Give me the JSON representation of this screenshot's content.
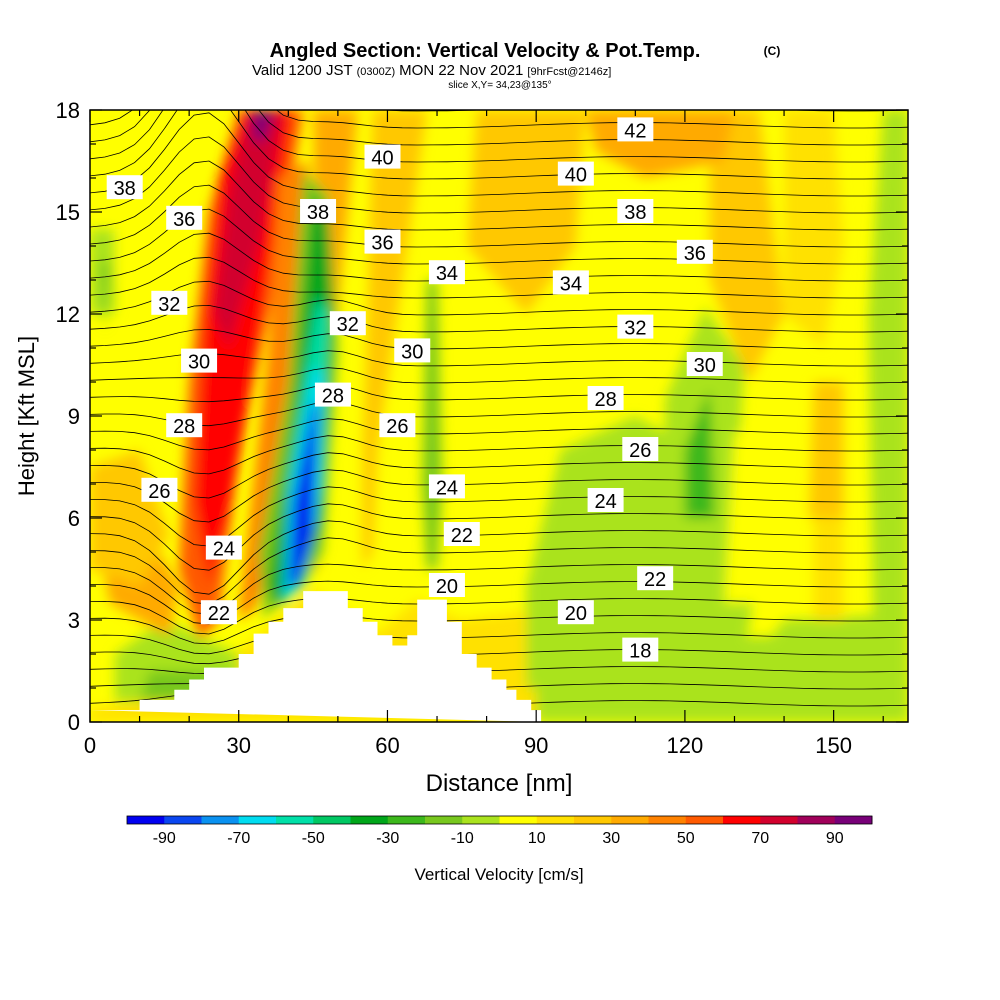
{
  "header": {
    "title": "Angled Section: Vertical Velocity & Pot.Temp.",
    "copyright": "(C)",
    "valid_prefix": "Valid 1200 JST",
    "valid_utc": "(0300Z)",
    "valid_date": "MON 22 Nov 2021",
    "forecast": "[9hrFcst@2146z]",
    "slice": "slice X,Y= 34,23@135°"
  },
  "chart_data": {
    "type": "heatmap",
    "xlabel": "Distance [nm]",
    "ylabel": "Height [Kft MSL]",
    "xlim": [
      0,
      165
    ],
    "ylim": [
      0,
      18
    ],
    "x_ticks": [
      0,
      30,
      60,
      90,
      120,
      150
    ],
    "y_ticks": [
      0,
      3,
      6,
      9,
      12,
      15,
      18
    ],
    "colorbar": {
      "label": "Vertical Velocity [cm/s]",
      "tick_labels": [
        -90,
        -70,
        -50,
        -30,
        -10,
        10,
        30,
        50,
        70,
        90
      ],
      "min": -100,
      "max": 100,
      "step": 10,
      "colors": [
        "#0000f0",
        "#0a46f0",
        "#0a91f0",
        "#00dcf0",
        "#00e0a8",
        "#00c863",
        "#00a61a",
        "#3cb81c",
        "#78c81e",
        "#aae31e",
        "#ffff00",
        "#ffe100",
        "#ffc800",
        "#ffaa00",
        "#ff8200",
        "#ff5a00",
        "#ff0000",
        "#d2002d",
        "#a0005a",
        "#780078"
      ]
    },
    "contour_labels": [
      {
        "value": "42",
        "x": 110,
        "y": 17.4
      },
      {
        "value": "38",
        "x": 7,
        "y": 15.7
      },
      {
        "value": "40",
        "x": 59,
        "y": 16.6
      },
      {
        "value": "40",
        "x": 98,
        "y": 16.1
      },
      {
        "value": "36",
        "x": 19,
        "y": 14.8
      },
      {
        "value": "38",
        "x": 46,
        "y": 15.0
      },
      {
        "value": "38",
        "x": 110,
        "y": 15.0
      },
      {
        "value": "36",
        "x": 59,
        "y": 14.1
      },
      {
        "value": "36",
        "x": 122,
        "y": 13.8
      },
      {
        "value": "34",
        "x": 72,
        "y": 13.2
      },
      {
        "value": "34",
        "x": 97,
        "y": 12.9
      },
      {
        "value": "32",
        "x": 16,
        "y": 12.3
      },
      {
        "value": "32",
        "x": 52,
        "y": 11.7
      },
      {
        "value": "32",
        "x": 110,
        "y": 11.6
      },
      {
        "value": "30",
        "x": 22,
        "y": 10.6
      },
      {
        "value": "30",
        "x": 65,
        "y": 10.9
      },
      {
        "value": "30",
        "x": 124,
        "y": 10.5
      },
      {
        "value": "28",
        "x": 49,
        "y": 9.6
      },
      {
        "value": "28",
        "x": 19,
        "y": 8.7
      },
      {
        "value": "28",
        "x": 104,
        "y": 9.5
      },
      {
        "value": "26",
        "x": 62,
        "y": 8.7
      },
      {
        "value": "26",
        "x": 111,
        "y": 8.0
      },
      {
        "value": "26",
        "x": 14,
        "y": 6.8
      },
      {
        "value": "24",
        "x": 72,
        "y": 6.9
      },
      {
        "value": "24",
        "x": 104,
        "y": 6.5
      },
      {
        "value": "24",
        "x": 27,
        "y": 5.1
      },
      {
        "value": "22",
        "x": 75,
        "y": 5.5
      },
      {
        "value": "22",
        "x": 114,
        "y": 4.2
      },
      {
        "value": "22",
        "x": 26,
        "y": 3.2
      },
      {
        "value": "20",
        "x": 72,
        "y": 4.0
      },
      {
        "value": "20",
        "x": 98,
        "y": 3.2
      },
      {
        "value": "18",
        "x": 111,
        "y": 2.1
      }
    ],
    "terrain": [
      [
        0,
        0.35
      ],
      [
        10,
        0.35
      ],
      [
        10,
        0.65
      ],
      [
        17,
        0.65
      ],
      [
        17,
        0.95
      ],
      [
        20,
        0.95
      ],
      [
        20,
        1.25
      ],
      [
        23,
        1.25
      ],
      [
        23,
        1.6
      ],
      [
        30,
        1.6
      ],
      [
        30,
        2.0
      ],
      [
        33,
        2.0
      ],
      [
        33,
        2.6
      ],
      [
        36,
        2.6
      ],
      [
        36,
        2.95
      ],
      [
        39,
        2.95
      ],
      [
        39,
        3.35
      ],
      [
        43,
        3.35
      ],
      [
        43,
        3.85
      ],
      [
        52,
        3.85
      ],
      [
        52,
        3.35
      ],
      [
        55,
        3.35
      ],
      [
        55,
        2.95
      ],
      [
        58,
        2.95
      ],
      [
        58,
        2.55
      ],
      [
        61,
        2.55
      ],
      [
        61,
        2.25
      ],
      [
        64,
        2.25
      ],
      [
        64,
        2.55
      ],
      [
        66,
        2.55
      ],
      [
        66,
        3.6
      ],
      [
        72,
        3.6
      ],
      [
        72,
        2.95
      ],
      [
        75,
        2.95
      ],
      [
        75,
        2.0
      ],
      [
        78,
        2.0
      ],
      [
        78,
        1.6
      ],
      [
        81,
        1.6
      ],
      [
        81,
        1.25
      ],
      [
        84,
        1.25
      ],
      [
        84,
        0.95
      ],
      [
        86,
        0.95
      ],
      [
        86,
        0.65
      ],
      [
        89,
        0.65
      ],
      [
        89,
        0.35
      ],
      [
        91,
        0.35
      ],
      [
        91,
        0
      ]
    ]
  }
}
